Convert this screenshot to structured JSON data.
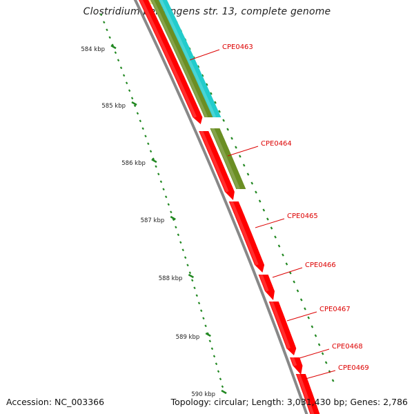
{
  "title": "Clostridium perfringens str. 13, complete genome",
  "footer": {
    "accession": "Accession: NC_003366",
    "summary": "Topology: circular; Length: 3,031,430 bp; Genes: 2,786"
  },
  "ruler_labels": [
    "584 kbp",
    "585 kbp",
    "586 kbp",
    "587 kbp",
    "588 kbp",
    "589 kbp",
    "590 kbp"
  ],
  "genes": [
    "CPE0463",
    "CPE0464",
    "CPE0465",
    "CPE0466",
    "CPE0467",
    "CPE0468",
    "CPE0469"
  ],
  "colors": {
    "gene_red": "#ff0000",
    "label_red": "#dd0000",
    "cyan_feature": "#22cccc",
    "olive_feature": "#6b8e23",
    "backbone": "#888888",
    "tick_green": "#228822"
  }
}
